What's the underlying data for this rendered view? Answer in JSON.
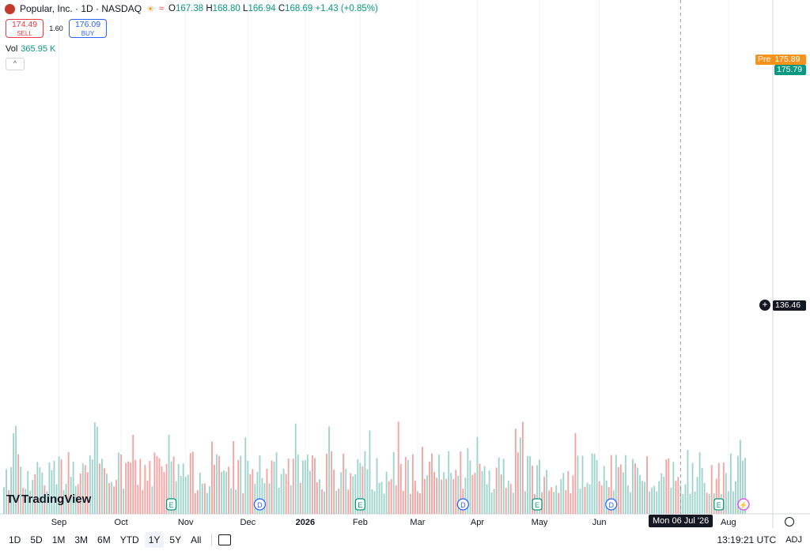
{
  "header": {
    "symbol": "Popular, Inc. · 1D · NASDAQ",
    "o_label": "O",
    "o": "167.38",
    "h_label": "H",
    "h": "168.80",
    "l_label": "L",
    "l": "166.94",
    "c_label": "C",
    "c": "168.69",
    "change": "+1.43 (+0.85%)"
  },
  "trade": {
    "sell_price": "174.49",
    "sell_label": "SELL",
    "spread": "1.60",
    "buy_price": "176.09",
    "buy_label": "BUY"
  },
  "volume": {
    "label": "Vol",
    "value": "365.95 K"
  },
  "price_tags": {
    "pre_label": "Pre",
    "pre_value": "175.89",
    "last_value": "175.79",
    "crosshair_value": "136.46"
  },
  "crosshair_date": "Mon 06 Jul '26",
  "brand": "TradingView",
  "bottom_bar": {
    "ranges": [
      "1D",
      "5D",
      "1M",
      "3M",
      "6M",
      "YTD",
      "1Y",
      "5Y",
      "All"
    ],
    "active_range": "1Y",
    "clock": "13:19:21 UTC",
    "adj": "ADJ"
  },
  "colors": {
    "up": "#26a69a",
    "down": "#ef5350",
    "vol_up": "#9fd4cc",
    "vol_down": "#f2a4a2",
    "pre": "#f7931a",
    "last": "#089981"
  },
  "chart_data": {
    "type": "candlestick",
    "y_axis": {
      "min": 102,
      "max": 186,
      "ticks": [
        104,
        108,
        112,
        116,
        120,
        124,
        128,
        132,
        136,
        140,
        144,
        148,
        152,
        156,
        160,
        164,
        168,
        172,
        176,
        180,
        184
      ]
    },
    "x_axis_labels": [
      "Sep",
      "Oct",
      "Nov",
      "Dec",
      "2026",
      "Feb",
      "Mar",
      "Apr",
      "May",
      "Jun",
      "Aug"
    ],
    "x_axis_label_bars": [
      23,
      49,
      76,
      102,
      126,
      149,
      173,
      198,
      224,
      249,
      303
    ],
    "bar_count": 311,
    "anchors": [
      [
        0,
        114.5
      ],
      [
        8,
        118
      ],
      [
        15,
        122.5
      ],
      [
        22,
        126.5
      ],
      [
        28,
        126
      ],
      [
        36,
        125
      ],
      [
        41,
        128
      ],
      [
        46,
        128.5
      ],
      [
        50,
        127
      ],
      [
        54,
        126
      ],
      [
        57,
        120.5
      ],
      [
        60,
        115
      ],
      [
        63,
        114
      ],
      [
        66,
        110
      ],
      [
        68,
        110.5
      ],
      [
        72,
        112
      ],
      [
        77,
        114
      ],
      [
        82,
        113
      ],
      [
        87,
        111
      ],
      [
        91,
        114
      ],
      [
        96,
        114.5
      ],
      [
        100,
        116
      ],
      [
        106,
        117.5
      ],
      [
        110,
        122
      ],
      [
        116,
        126
      ],
      [
        123,
        127
      ],
      [
        128,
        129.5
      ],
      [
        133,
        128
      ],
      [
        138,
        127
      ],
      [
        141,
        125
      ],
      [
        145,
        124
      ],
      [
        147,
        128
      ],
      [
        151,
        133.5
      ],
      [
        153,
        139
      ],
      [
        156,
        145
      ],
      [
        160,
        147
      ],
      [
        164,
        146.5
      ],
      [
        168,
        142
      ],
      [
        172,
        140
      ],
      [
        174,
        136
      ],
      [
        177,
        133.5
      ],
      [
        180,
        131
      ],
      [
        183,
        128.5
      ],
      [
        186,
        129.5
      ],
      [
        190,
        130.5
      ],
      [
        194,
        132
      ],
      [
        198,
        132
      ],
      [
        201,
        134.5
      ],
      [
        203,
        139.5
      ],
      [
        205,
        143.5
      ],
      [
        210,
        145.5
      ],
      [
        214,
        147
      ],
      [
        219,
        148.5
      ],
      [
        223,
        149
      ],
      [
        228,
        147.5
      ],
      [
        233,
        147
      ],
      [
        236,
        144.5
      ],
      [
        240,
        144.5
      ],
      [
        243,
        146
      ],
      [
        247,
        149
      ],
      [
        251,
        149
      ],
      [
        255,
        148
      ],
      [
        258,
        150
      ],
      [
        262,
        155
      ],
      [
        265,
        158
      ],
      [
        268,
        160.5
      ],
      [
        270,
        159.5
      ],
      [
        273,
        163
      ],
      [
        276,
        167
      ],
      [
        279,
        168
      ],
      [
        282,
        166
      ],
      [
        284,
        165.5
      ],
      [
        287,
        168
      ],
      [
        290,
        170.5
      ],
      [
        294,
        171
      ],
      [
        297,
        171.5
      ],
      [
        300,
        172.5
      ],
      [
        303,
        173
      ],
      [
        307,
        174
      ],
      [
        310,
        175.8
      ]
    ],
    "events": [
      {
        "bar": 70,
        "label": "E"
      },
      {
        "bar": 107,
        "label": "D"
      },
      {
        "bar": 149,
        "label": "E"
      },
      {
        "bar": 192,
        "label": "D"
      },
      {
        "bar": 223,
        "label": "E"
      },
      {
        "bar": 254,
        "label": "D"
      },
      {
        "bar": 299,
        "label": "E"
      }
    ],
    "last_open": 167.38,
    "last_high": 168.8,
    "last_low": 166.94,
    "last_close": 168.69,
    "pre_market": 175.89,
    "last_price": 175.79,
    "crosshair_price": 136.46,
    "crosshair_bar": 283
  }
}
